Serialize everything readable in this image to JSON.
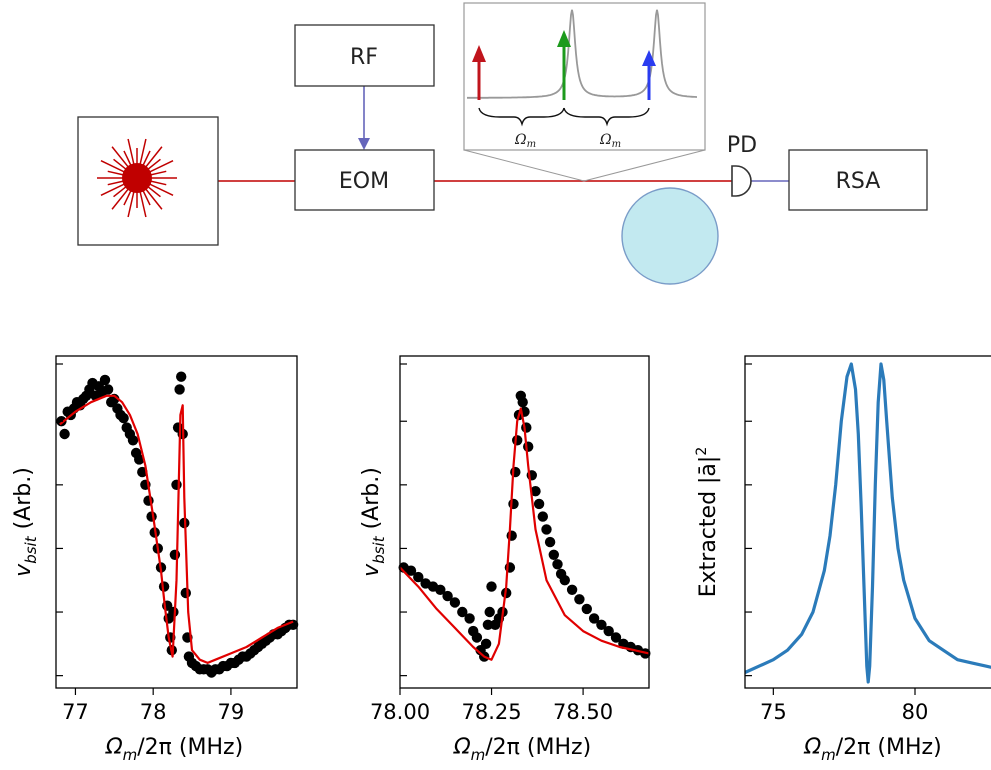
{
  "diagram": {
    "blocks": {
      "rf": "RF",
      "eom": "EOM",
      "rsa": "RSA",
      "pd": "PD"
    },
    "inset_labels": [
      "Ω",
      "Ω"
    ],
    "inset_label_sub": "m",
    "colors": {
      "laser": "#c00000",
      "rf_line": "#6666bb",
      "pd_line": "#6666bb",
      "resonator_fill": "#c2e9f0",
      "resonator_stroke": "#7a9cc8",
      "arrow_red": "#c0141c",
      "arrow_green": "#1c9a1c",
      "arrow_blue": "#2a3cf0",
      "inset_curve": "#999999"
    }
  },
  "chart_data": [
    {
      "type": "scatter",
      "ylabel_main": "v",
      "ylabel_sub": "bsit",
      "ylabel_unit": " (Arb.)",
      "xlabel_main": "Ω",
      "xlabel_sub": "m",
      "xlabel_rest": "/2π (MHz)",
      "xlim": [
        76.75,
        79.85
      ],
      "xticks": [
        77,
        78,
        79
      ],
      "xtick_labels": [
        "77",
        "78",
        "79"
      ],
      "ylim": [
        0.0,
        1.0
      ],
      "yticks": [
        0.02,
        0.22,
        0.42,
        0.62,
        0.82,
        1.0
      ],
      "colors": {
        "points": "#000000",
        "fit": "#e00000"
      },
      "series": [
        {
          "kind": "points",
          "x": [
            76.82,
            76.86,
            76.9,
            76.94,
            76.98,
            77.02,
            77.06,
            77.1,
            77.14,
            77.18,
            77.22,
            77.26,
            77.3,
            77.34,
            77.38,
            77.42,
            77.46,
            77.5,
            77.54,
            77.58,
            77.62,
            77.66,
            77.7,
            77.74,
            77.78,
            77.82,
            77.86,
            77.9,
            77.94,
            77.98,
            78.02,
            78.06,
            78.1,
            78.14,
            78.18,
            78.2,
            78.22,
            78.24,
            78.26,
            78.28,
            78.3,
            78.32,
            78.34,
            78.36,
            78.38,
            78.4,
            78.42,
            78.44,
            78.46,
            78.5,
            78.55,
            78.6,
            78.65,
            78.7,
            78.75,
            78.8,
            78.85,
            78.9,
            78.95,
            79.0,
            79.05,
            79.1,
            79.15,
            79.2,
            79.25,
            79.3,
            79.35,
            79.4,
            79.45,
            79.5,
            79.55,
            79.6,
            79.65,
            79.7,
            79.75,
            79.8
          ],
          "y": [
            0.82,
            0.78,
            0.85,
            0.84,
            0.86,
            0.88,
            0.87,
            0.89,
            0.9,
            0.92,
            0.94,
            0.9,
            0.93,
            0.91,
            0.95,
            0.92,
            0.88,
            0.89,
            0.86,
            0.84,
            0.83,
            0.8,
            0.78,
            0.76,
            0.72,
            0.7,
            0.66,
            0.62,
            0.57,
            0.52,
            0.47,
            0.42,
            0.36,
            0.3,
            0.24,
            0.2,
            0.14,
            0.1,
            0.22,
            0.4,
            0.62,
            0.8,
            0.92,
            0.96,
            0.78,
            0.5,
            0.28,
            0.14,
            0.08,
            0.06,
            0.05,
            0.04,
            0.04,
            0.04,
            0.03,
            0.04,
            0.04,
            0.05,
            0.05,
            0.06,
            0.06,
            0.07,
            0.08,
            0.08,
            0.09,
            0.1,
            0.11,
            0.12,
            0.13,
            0.14,
            0.15,
            0.15,
            0.16,
            0.17,
            0.18,
            0.18
          ]
        },
        {
          "kind": "fit",
          "x": [
            76.8,
            77.0,
            77.2,
            77.4,
            77.5,
            77.6,
            77.7,
            77.8,
            77.9,
            78.0,
            78.1,
            78.15,
            78.2,
            78.25,
            78.3,
            78.35,
            78.38,
            78.4,
            78.45,
            78.5,
            78.6,
            78.7,
            78.8,
            79.0,
            79.2,
            79.4,
            79.6,
            79.8
          ],
          "y": [
            0.81,
            0.85,
            0.88,
            0.9,
            0.9,
            0.88,
            0.84,
            0.78,
            0.68,
            0.52,
            0.35,
            0.24,
            0.14,
            0.08,
            0.32,
            0.84,
            0.87,
            0.58,
            0.22,
            0.1,
            0.07,
            0.06,
            0.07,
            0.09,
            0.11,
            0.14,
            0.17,
            0.19
          ]
        }
      ]
    },
    {
      "type": "scatter",
      "ylabel_main": "v",
      "ylabel_sub": "bsit",
      "ylabel_unit": " (Arb.)",
      "xlabel_main": "Ω",
      "xlabel_sub": "m",
      "xlabel_rest": "/2π (MHz)",
      "xlim": [
        78.0,
        78.68
      ],
      "xticks": [
        78.0,
        78.25,
        78.5
      ],
      "xtick_labels": [
        "78.00",
        "78.25",
        "78.50"
      ],
      "ylim": [
        0.0,
        1.0
      ],
      "yticks": [
        0.02,
        0.22,
        0.42,
        0.62,
        0.82,
        1.0
      ],
      "colors": {
        "points": "#000000",
        "fit": "#e00000"
      },
      "series": [
        {
          "kind": "points",
          "x": [
            78.01,
            78.03,
            78.05,
            78.07,
            78.09,
            78.11,
            78.13,
            78.15,
            78.17,
            78.19,
            78.2,
            78.21,
            78.22,
            78.23,
            78.235,
            78.24,
            78.245,
            78.25,
            78.26,
            78.27,
            78.28,
            78.29,
            78.3,
            78.305,
            78.31,
            78.315,
            78.32,
            78.325,
            78.33,
            78.335,
            78.34,
            78.345,
            78.35,
            78.36,
            78.37,
            78.38,
            78.39,
            78.4,
            78.41,
            78.42,
            78.43,
            78.44,
            78.45,
            78.47,
            78.49,
            78.51,
            78.53,
            78.55,
            78.57,
            78.59,
            78.61,
            78.63,
            78.65,
            78.67
          ],
          "y": [
            0.36,
            0.35,
            0.33,
            0.31,
            0.3,
            0.29,
            0.27,
            0.25,
            0.22,
            0.2,
            0.16,
            0.14,
            0.1,
            0.08,
            0.12,
            0.18,
            0.22,
            0.3,
            0.18,
            0.2,
            0.22,
            0.28,
            0.36,
            0.46,
            0.56,
            0.66,
            0.76,
            0.84,
            0.9,
            0.88,
            0.85,
            0.8,
            0.74,
            0.65,
            0.6,
            0.56,
            0.52,
            0.48,
            0.44,
            0.4,
            0.37,
            0.34,
            0.32,
            0.29,
            0.26,
            0.23,
            0.2,
            0.18,
            0.16,
            0.14,
            0.12,
            0.11,
            0.1,
            0.09
          ]
        },
        {
          "kind": "fit",
          "x": [
            78.0,
            78.05,
            78.1,
            78.15,
            78.2,
            78.23,
            78.25,
            78.27,
            78.29,
            78.3,
            78.31,
            78.32,
            78.33,
            78.34,
            78.35,
            78.37,
            78.4,
            78.45,
            78.5,
            78.55,
            78.6,
            78.68
          ],
          "y": [
            0.36,
            0.3,
            0.23,
            0.17,
            0.11,
            0.08,
            0.07,
            0.12,
            0.3,
            0.48,
            0.68,
            0.82,
            0.86,
            0.8,
            0.68,
            0.48,
            0.32,
            0.21,
            0.16,
            0.13,
            0.11,
            0.09
          ]
        }
      ]
    },
    {
      "type": "line",
      "ylabel_main": "Extracted |ā|",
      "ylabel_sup": "2",
      "xlabel_main": "Ω",
      "xlabel_sub": "m",
      "xlabel_rest": "/2π (MHz)",
      "xlim": [
        74.0,
        83.0
      ],
      "xticks": [
        75,
        80
      ],
      "xtick_labels": [
        "75",
        "80"
      ],
      "ylim": [
        0.0,
        1.0
      ],
      "yticks": [
        0.02,
        0.22,
        0.42,
        0.62,
        0.82,
        1.0
      ],
      "colors": {
        "line": "#2b7bba"
      },
      "series": [
        {
          "kind": "line",
          "x": [
            74.0,
            74.5,
            75.0,
            75.5,
            76.0,
            76.4,
            76.8,
            77.0,
            77.2,
            77.4,
            77.6,
            77.75,
            77.9,
            78.0,
            78.1,
            78.2,
            78.3,
            78.35,
            78.4,
            78.5,
            78.6,
            78.7,
            78.8,
            78.9,
            79.0,
            79.2,
            79.4,
            79.6,
            80.0,
            80.5,
            81.0,
            81.5,
            82.0,
            82.5,
            83.0
          ],
          "y": [
            0.03,
            0.05,
            0.07,
            0.1,
            0.15,
            0.22,
            0.35,
            0.46,
            0.62,
            0.82,
            0.96,
            1.0,
            0.92,
            0.78,
            0.55,
            0.3,
            0.05,
            0.0,
            0.05,
            0.3,
            0.62,
            0.88,
            1.0,
            0.95,
            0.82,
            0.58,
            0.42,
            0.32,
            0.2,
            0.13,
            0.1,
            0.07,
            0.06,
            0.05,
            0.04
          ]
        }
      ]
    }
  ]
}
